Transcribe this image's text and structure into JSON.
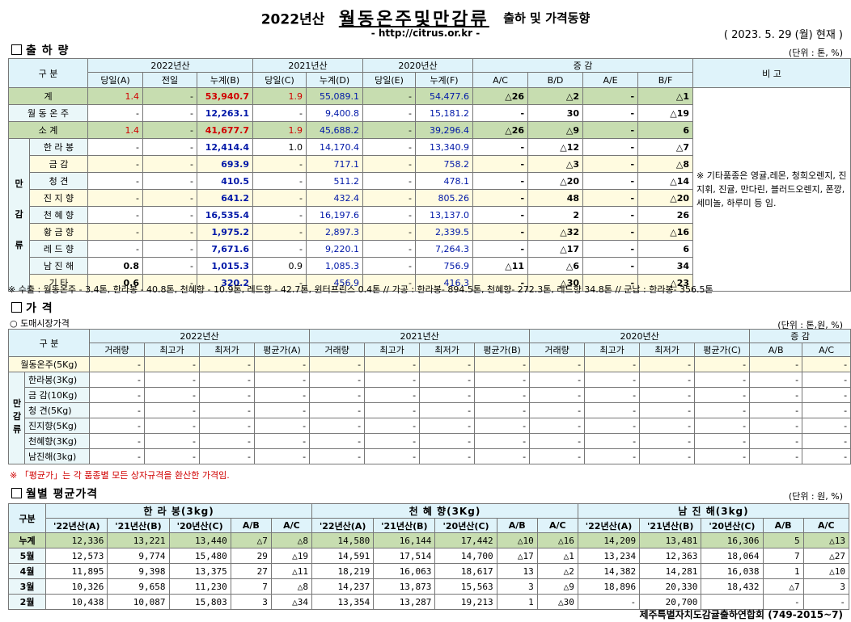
{
  "header": {
    "year": "2022년산",
    "main": "월동온주및만감류",
    "sub": "출하 및 가격동향",
    "url": "- http://citrus.or.kr -",
    "date": "( 2023.  5.  29 (월) 현재 )"
  },
  "s1": {
    "title": "출 하 량",
    "unit": "(단위 : 톤, %)",
    "h_gubun": "구   분",
    "h_2022": "2022년산",
    "h_2021": "2021년산",
    "h_2020": "2020년산",
    "h_jg": "증       감",
    "h_bigo": "비 고",
    "sub": [
      "당일(A)",
      "전일",
      "누계(B)",
      "당일(C)",
      "누계(D)",
      "당일(E)",
      "누계(F)",
      "A/C",
      "B/D",
      "A/E",
      "B/F"
    ],
    "side": "만 감 류",
    "remark": "※ 기타품종은 영귤,레몬, 청희오렌지, 진지휘, 진귤, 만다린, 블러드오렌지, 폰깡,세미놀, 하루미 등 임.",
    "rows": [
      {
        "label": "계",
        "v": [
          "1.4",
          "-",
          "53,940.7",
          "1.9",
          "55,089.1",
          "-",
          "54,477.6",
          "△26",
          "△2",
          "-",
          "△1"
        ]
      },
      {
        "label": "월 동 온 주",
        "v": [
          "-",
          "-",
          "12,263.1",
          "-",
          "9,400.8",
          "-",
          "15,181.2",
          "-",
          "30",
          "-",
          "△19"
        ]
      },
      {
        "label": "소    계",
        "v": [
          "1.4",
          "-",
          "41,677.7",
          "1.9",
          "45,688.2",
          "-",
          "39,296.4",
          "△26",
          "△9",
          "-",
          "6"
        ]
      },
      {
        "label": "한 라 봉",
        "v": [
          "-",
          "-",
          "12,414.4",
          "1.0",
          "14,170.4",
          "-",
          "13,340.9",
          "-",
          "△12",
          "-",
          "△7"
        ]
      },
      {
        "label": "금    감",
        "v": [
          "-",
          "-",
          "693.9",
          "-",
          "717.1",
          "-",
          "758.2",
          "-",
          "△3",
          "-",
          "△8"
        ]
      },
      {
        "label": "청    견",
        "v": [
          "-",
          "-",
          "410.5",
          "-",
          "511.2",
          "-",
          "478.1",
          "-",
          "△20",
          "-",
          "△14"
        ]
      },
      {
        "label": "진 지 향",
        "v": [
          "-",
          "-",
          "641.2",
          "-",
          "432.4",
          "-",
          "805.26",
          "-",
          "48",
          "-",
          "△20"
        ]
      },
      {
        "label": "천 혜 향",
        "v": [
          "-",
          "-",
          "16,535.4",
          "-",
          "16,197.6",
          "-",
          "13,137.0",
          "-",
          "2",
          "-",
          "26"
        ]
      },
      {
        "label": "황 금 향",
        "v": [
          "-",
          "-",
          "1,975.2",
          "-",
          "2,897.3",
          "-",
          "2,339.5",
          "-",
          "△32",
          "-",
          "△16"
        ]
      },
      {
        "label": "레 드 향",
        "v": [
          "-",
          "-",
          "7,671.6",
          "-",
          "9,220.1",
          "-",
          "7,264.3",
          "-",
          "△17",
          "-",
          "6"
        ]
      },
      {
        "label": "남 진 해",
        "v": [
          "0.8",
          "-",
          "1,015.3",
          "0.9",
          "1,085.3",
          "-",
          "756.9",
          "△11",
          "△6",
          "-",
          "34"
        ]
      },
      {
        "label": "기    타",
        "v": [
          "0.6",
          "-",
          "320.2",
          "-",
          "456.9",
          "-",
          "416.3",
          "-",
          "△30",
          "-",
          "△23"
        ]
      }
    ],
    "footnote": "※ 수출 : 월동온주 - 3.4톤, 한라봉 - 40.8톤, 천혜향 - 10.9톤, 레드향 - 42.7톤, 윈터프린스 0.4톤 //  가공  :  한라봉- 894.5톤, 천혜향- 272.3톤, 레드향 34.8톤  //  군납 : 한라봉- 356.5톤"
  },
  "s2": {
    "title": "가      격",
    "subtitle": "○ 도매시장가격",
    "unit": "(단위 : 톤,원, %)",
    "h_gubun": "구   분",
    "h_2022": "2022년산",
    "h_2021": "2021년산",
    "h_2020": "2020년산",
    "h_jg": "증   감",
    "sub": [
      "거래량",
      "최고가",
      "최저가",
      "평균가(A)",
      "거래량",
      "최고가",
      "최저가",
      "평균가(B)",
      "거래량",
      "최고가",
      "최저가",
      "평균가(C)",
      "A/B",
      "A/C"
    ],
    "side": "만 감 류",
    "rows": [
      {
        "label": "월동온주(5Kg)"
      },
      {
        "label": "한라봉(3Kg)"
      },
      {
        "label": "금 감(10Kg)"
      },
      {
        "label": "청   견(5Kg)"
      },
      {
        "label": "진지향(5Kg)"
      },
      {
        "label": "천혜향(3Kg)"
      },
      {
        "label": "남진해(3kg)"
      }
    ],
    "dash": "-",
    "footnote": "※ 「평균가」는 각 품종별 모든 상자규격을 환산한 가격임."
  },
  "s3": {
    "title": "월별 평균가격",
    "unit": "(단위 : 원, %)",
    "h_gubun": "구분",
    "groups": [
      "한 라 봉(3kg)",
      "천 혜 향(3Kg)",
      "남 진 해(3kg)"
    ],
    "sub": [
      "'22년산(A)",
      "'21년산(B)",
      "'20년산(C)",
      "A/B",
      "A/C"
    ],
    "rows": [
      {
        "label": "누계",
        "v": [
          "12,336",
          "13,221",
          "13,440",
          "△7",
          "△8",
          "14,580",
          "16,144",
          "17,442",
          "△10",
          "△16",
          "14,209",
          "13,481",
          "16,306",
          "5",
          "△13"
        ]
      },
      {
        "label": "5월",
        "v": [
          "12,573",
          "9,774",
          "15,480",
          "29",
          "△19",
          "14,591",
          "17,514",
          "14,700",
          "△17",
          "△1",
          "13,234",
          "12,363",
          "18,064",
          "7",
          "△27"
        ]
      },
      {
        "label": "4월",
        "v": [
          "11,895",
          "9,398",
          "13,375",
          "27",
          "△11",
          "18,219",
          "16,063",
          "18,617",
          "13",
          "△2",
          "14,382",
          "14,281",
          "16,038",
          "1",
          "△10"
        ]
      },
      {
        "label": "3월",
        "v": [
          "10,326",
          "9,658",
          "11,230",
          "7",
          "△8",
          "14,237",
          "13,873",
          "15,563",
          "3",
          "△9",
          "18,896",
          "20,330",
          "18,432",
          "△7",
          "3"
        ]
      },
      {
        "label": "2월",
        "v": [
          "10,438",
          "10,087",
          "15,803",
          "3",
          "△34",
          "13,354",
          "13,287",
          "19,213",
          "1",
          "△30",
          "-",
          "20,700",
          "",
          "-",
          "-"
        ]
      }
    ]
  },
  "footer": "제주특별자치도감귤출하연합회 (749-2015~7)"
}
